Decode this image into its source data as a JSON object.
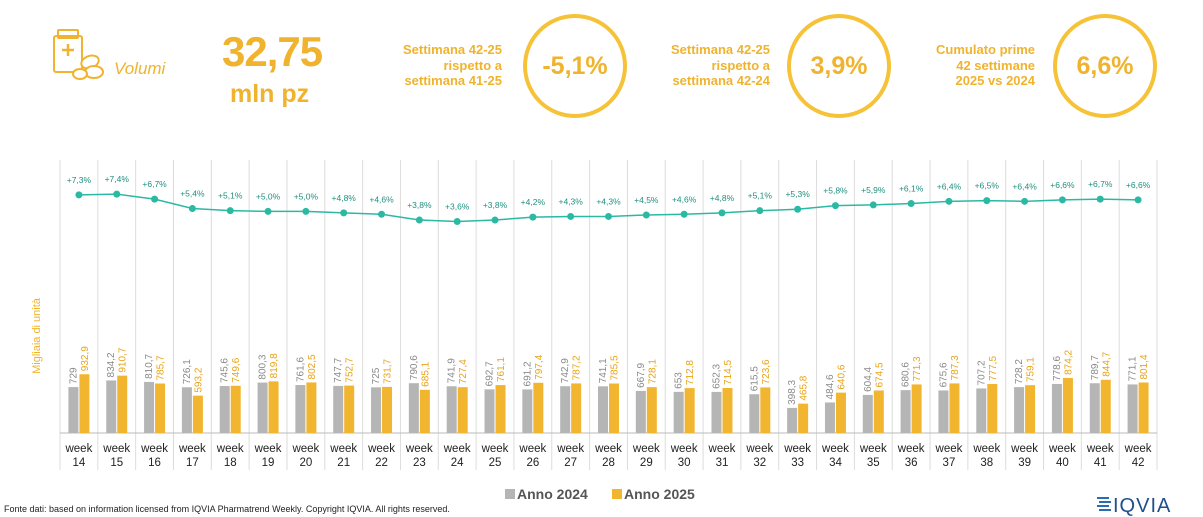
{
  "header": {
    "kpi_label": "Volumi",
    "kpi_value": "32,75",
    "kpi_unit": "mln pz",
    "boxes": [
      {
        "lines": [
          "Settimana 42-25",
          "rispetto a",
          "settimana 41-25"
        ],
        "value": "-5,1%"
      },
      {
        "lines": [
          "Settimana 42-25",
          "rispetto a",
          "settimana 42-24"
        ],
        "value": "3,9%"
      },
      {
        "lines": [
          "Cumulato prime",
          "42 settimane",
          "2025 vs 2024"
        ],
        "value": "6,6%"
      }
    ]
  },
  "colors": {
    "accent": "#f0b32e",
    "bar_2024": "#b5b5b5",
    "bar_2025": "#f2b52f",
    "line": "#2bb9a3",
    "grid": "#dcdcdc"
  },
  "chart_data": {
    "type": "bar",
    "categories": [
      [
        "week",
        "14"
      ],
      [
        "week",
        "15"
      ],
      [
        "week",
        "16"
      ],
      [
        "week",
        "17"
      ],
      [
        "week",
        "18"
      ],
      [
        "week",
        "19"
      ],
      [
        "week",
        "20"
      ],
      [
        "week",
        "21"
      ],
      [
        "week",
        "22"
      ],
      [
        "week",
        "23"
      ],
      [
        "week",
        "24"
      ],
      [
        "week",
        "25"
      ],
      [
        "week",
        "26"
      ],
      [
        "week",
        "27"
      ],
      [
        "week",
        "28"
      ],
      [
        "week",
        "29"
      ],
      [
        "week",
        "30"
      ],
      [
        "week",
        "31"
      ],
      [
        "week",
        "32"
      ],
      [
        "week",
        "33"
      ],
      [
        "week",
        "34"
      ],
      [
        "week",
        "35"
      ],
      [
        "week",
        "36"
      ],
      [
        "week",
        "37"
      ],
      [
        "week",
        "38"
      ],
      [
        "week",
        "39"
      ],
      [
        "week",
        "40"
      ],
      [
        "week",
        "41"
      ],
      [
        "week",
        "42"
      ]
    ],
    "series": [
      {
        "name": "Anno 2024",
        "values": [
          729,
          834.2,
          810.7,
          726.1,
          745.6,
          800.3,
          761.6,
          747.7,
          725,
          790.6,
          741.9,
          692.7,
          691.2,
          742.9,
          741.1,
          667.9,
          653,
          652.3,
          615.5,
          398.3,
          484.6,
          604.4,
          680.6,
          675.6,
          707.2,
          728.2,
          778.6,
          789.7,
          771.1
        ],
        "labels": [
          "729",
          "834,2",
          "810,7",
          "726,1",
          "745,6",
          "800,3",
          "761,6",
          "747,7",
          "725",
          "790,6",
          "741,9",
          "692,7",
          "691,2",
          "742,9",
          "741,1",
          "667,9",
          "653",
          "652,3",
          "615,5",
          "398,3",
          "484,6",
          "604,4",
          "680,6",
          "675,6",
          "707,2",
          "728,2",
          "778,6",
          "789,7",
          "771,1"
        ]
      },
      {
        "name": "Anno 2025",
        "values": [
          932.9,
          910.7,
          785.7,
          593.2,
          749.6,
          819.8,
          802.5,
          752.7,
          731.7,
          685.1,
          727.4,
          761.1,
          797.4,
          787.2,
          785.5,
          728.1,
          712.8,
          714.5,
          723.6,
          465.8,
          640.6,
          674.5,
          771.3,
          787.3,
          777.5,
          759.1,
          874.2,
          844.7,
          801.4
        ],
        "labels": [
          "932,9",
          "910,7",
          "785,7",
          "593,2",
          "749,6",
          "819,8",
          "802,5",
          "752,7",
          "731,7",
          "685,1",
          "727,4",
          "761,1",
          "797,4",
          "787,2",
          "785,5",
          "728,1",
          "712,8",
          "714,5",
          "723,6",
          "465,8",
          "640,6",
          "674,5",
          "771,3",
          "787,3",
          "777,5",
          "759,1",
          "874,2",
          "844,7",
          "801,4"
        ]
      }
    ],
    "cumulative_growth": {
      "values": [
        7.3,
        7.4,
        6.7,
        5.4,
        5.1,
        5.0,
        5.0,
        4.8,
        4.6,
        3.8,
        3.6,
        3.8,
        4.2,
        4.3,
        4.3,
        4.5,
        4.6,
        4.8,
        5.1,
        5.3,
        5.8,
        5.9,
        6.1,
        6.4,
        6.5,
        6.4,
        6.6,
        6.7,
        6.6
      ],
      "labels": [
        "+7,3%",
        "+7,4%",
        "+6,7%",
        "+5,4%",
        "+5,1%",
        "+5,0%",
        "+5,0%",
        "+4,8%",
        "+4,6%",
        "+3,8%",
        "+3,6%",
        "+3,8%",
        "+4,2%",
        "+4,3%",
        "+4,3%",
        "+4,5%",
        "+4,6%",
        "+4,8%",
        "+5,1%",
        "+5,3%",
        "+5,8%",
        "+5,9%",
        "+6,1%",
        "+6,4%",
        "+6,5%",
        "+6,4%",
        "+6,6%",
        "+6,7%",
        "+6,6%"
      ]
    },
    "ylabel": "Migliaia di unità",
    "legend_position": "bottom-center",
    "grid": "vertical separators"
  },
  "footer": {
    "source": "Fonte dati: based on information licensed from IQVIA Pharmatrend Weekly. Copyright IQVIA. All rights reserved.",
    "logo_text": "IQVIA"
  }
}
